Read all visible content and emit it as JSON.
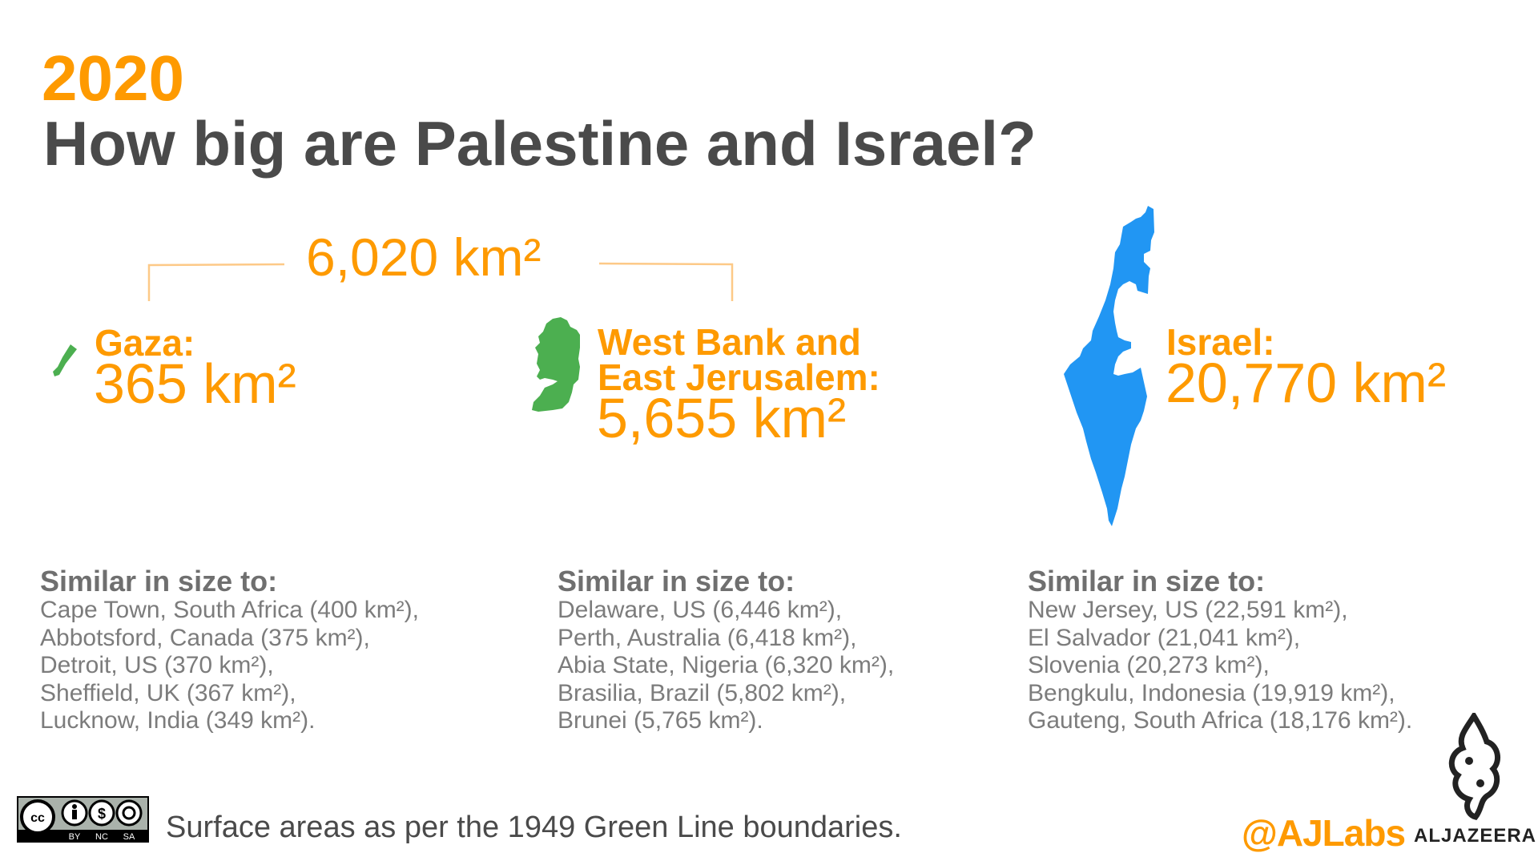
{
  "header": {
    "year": "2020",
    "title": "How big are Palestine and Israel?"
  },
  "total": {
    "value": "6,020 km²"
  },
  "regions": [
    {
      "label": "Gaza:",
      "value": "365 km²",
      "color": "#4caf50"
    },
    {
      "label_line1": "West Bank and",
      "label_line2": "East Jerusalem:",
      "value": "5,655 km²",
      "color": "#4caf50"
    },
    {
      "label": "Israel:",
      "value": "20,770 km²",
      "color": "#2196f3"
    }
  ],
  "similar": [
    {
      "heading": "Similar in size to:",
      "items": [
        "Cape Town, South Africa (400 km²),",
        "Abbotsford, Canada (375 km²),",
        "Detroit, US (370 km²),",
        "Sheffield, UK (367 km²),",
        "Lucknow, India (349 km²)."
      ]
    },
    {
      "heading": "Similar in size to:",
      "items": [
        "Delaware, US (6,446 km²),",
        "Perth, Australia (6,418 km²),",
        "Abia State, Nigeria (6,320 km²),",
        "Brasilia, Brazil (5,802 km²),",
        "Brunei (5,765 km²)."
      ]
    },
    {
      "heading": "Similar in size to:",
      "items": [
        "New Jersey, US (22,591 km²),",
        "El Salvador (21,041 km²),",
        "Slovenia (20,273 km²),",
        "Bengkulu, Indonesia (19,919 km²),",
        "Gauteng, South Africa (18,176 km²)."
      ]
    }
  ],
  "footer": {
    "note": "Surface areas as per the 1949 Green Line boundaries.",
    "license_labels": [
      "cc",
      "BY",
      "NC",
      "SA"
    ],
    "handle": "@AJLabs",
    "brand": "ALJAZEERA"
  },
  "colors": {
    "accent": "#fe9a00",
    "palestine": "#4caf50",
    "israel": "#2196f3",
    "title": "#4a4a4a"
  }
}
